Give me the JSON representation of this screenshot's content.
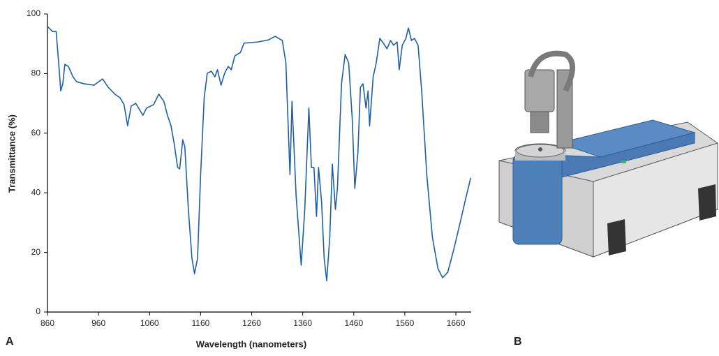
{
  "chart_data": {
    "type": "line",
    "xlabel": "Wavelength (nanometers)",
    "ylabel": "Transmittance (%)",
    "panel_labels": [
      "A",
      "B"
    ],
    "color": "#1f5fa6",
    "x": [
      860,
      870,
      877,
      883,
      886,
      890,
      894,
      901,
      910,
      917,
      931,
      951,
      968,
      979,
      992,
      1002,
      1010,
      1017,
      1024,
      1033,
      1047,
      1054,
      1068,
      1078,
      1088,
      1095,
      1102,
      1108,
      1115,
      1119,
      1125,
      1129,
      1136,
      1143,
      1148,
      1154,
      1160,
      1167,
      1173,
      1181,
      1188,
      1193,
      1200,
      1207,
      1214,
      1220,
      1227,
      1238,
      1245,
      1272,
      1293,
      1306,
      1320,
      1327,
      1335,
      1339,
      1347,
      1357,
      1364,
      1372,
      1377,
      1382,
      1387,
      1391,
      1397,
      1402,
      1407,
      1413,
      1418,
      1424,
      1428,
      1436,
      1443,
      1450,
      1457,
      1462,
      1468,
      1473,
      1478,
      1484,
      1488,
      1491,
      1498,
      1504,
      1511,
      1518,
      1525,
      1532,
      1538,
      1545,
      1549,
      1555,
      1562,
      1567,
      1573,
      1579,
      1586,
      1593,
      1603,
      1614,
      1625,
      1634,
      1644,
      1655,
      1668,
      1679,
      1689
    ],
    "values": [
      95.8,
      94.1,
      94.1,
      81.3,
      74.2,
      76.6,
      83.1,
      82.4,
      78.9,
      77.3,
      76.6,
      76.1,
      78.2,
      75.4,
      73.1,
      71.9,
      69.6,
      62.5,
      69.1,
      70,
      66,
      68.4,
      69.6,
      73.1,
      70.7,
      66,
      62.5,
      56.7,
      48.5,
      48,
      57.8,
      55.5,
      34.4,
      18,
      12.9,
      18,
      46.1,
      71.9,
      80.1,
      80.8,
      78.9,
      81.3,
      76.1,
      80.1,
      82.4,
      81.3,
      85.9,
      87.1,
      90.2,
      90.6,
      91.3,
      92.5,
      91.1,
      83.6,
      46.1,
      70.7,
      39.1,
      15.7,
      34.4,
      68.4,
      48.5,
      48.5,
      32.1,
      48.5,
      36.8,
      18,
      10.5,
      25.1,
      49.6,
      34.4,
      41.5,
      76.6,
      86.4,
      83.6,
      64.9,
      41.5,
      53.2,
      75.4,
      76.6,
      68.4,
      74.2,
      62.5,
      78.9,
      83.6,
      91.8,
      90.2,
      88.3,
      91.1,
      89.5,
      90.6,
      81.3,
      89.5,
      91.8,
      95.3,
      91.1,
      91.8,
      89.5,
      74.2,
      46.1,
      25.1,
      14.5,
      11.5,
      13.3,
      20.4,
      29.7,
      37.9,
      45
    ],
    "xlim": [
      860,
      1690
    ],
    "xticks": [
      860,
      960,
      1060,
      1160,
      1260,
      1360,
      1460,
      1560,
      1660
    ],
    "ylim": [
      0,
      100
    ],
    "yticks": [
      0,
      20,
      40,
      60,
      80,
      100
    ],
    "grid": false
  }
}
